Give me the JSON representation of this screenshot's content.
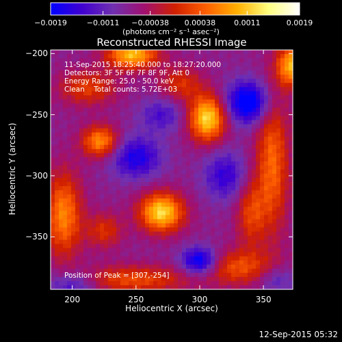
{
  "chart_data": {
    "type": "heatmap",
    "title": "Reconstructed RHESSI Image",
    "xlabel": "Heliocentric X (arcsec)",
    "ylabel": "Heliocentric Y (arcsec)",
    "xlim": [
      183,
      373
    ],
    "ylim": [
      -393,
      -197
    ],
    "x_ticks": [
      200,
      250,
      300,
      350
    ],
    "y_ticks": [
      -200,
      -250,
      -300,
      -350
    ],
    "x_tick_labels": [
      "200",
      "250",
      "300",
      "350"
    ],
    "y_tick_labels": [
      "−200",
      "−250",
      "−300",
      "−350"
    ],
    "colorbar": {
      "range": [
        -0.0019,
        0.0019
      ],
      "tick_values": [
        -0.0019,
        -0.0011,
        -0.00038,
        0.00038,
        0.0011,
        0.0019
      ],
      "tick_labels": [
        "−0.0019",
        "−0.0011",
        "−0.00038",
        "0.00038",
        "0.0011",
        "0.0019"
      ],
      "units": "(photons cm⁻² s⁻¹ asec⁻²)",
      "colormap": [
        "#0000ff",
        "#4000d0",
        "#7030b0",
        "#a01070",
        "#d02000",
        "#ff6000",
        "#ffb000",
        "#ffff80",
        "#ffffff"
      ]
    },
    "annotations": {
      "time_range": "11-Sep-2015 18:25:40.000 to 18:27:20.000",
      "detectors": "Detectors: 3F 5F 6F 7F 8F 9F, Att 0",
      "energy": "Energy Range: 25.0 - 50.0 keV",
      "method": "Clean    Total counts: 5.72E+03",
      "peak": "Position of Peak = [307,-254]"
    },
    "peak_position": [
      307,
      -254
    ],
    "sources": [
      {
        "x": 270,
        "y": -330,
        "amp": 1.0,
        "sx": 12,
        "sy": 11
      },
      {
        "x": 306,
        "y": -253,
        "amp": 1.0,
        "sx": 10,
        "sy": 13
      },
      {
        "x": 247,
        "y": -201,
        "amp": 0.9,
        "sx": 14,
        "sy": 8
      },
      {
        "x": 222,
        "y": -272,
        "amp": 0.75,
        "sx": 10,
        "sy": 9
      },
      {
        "x": 193,
        "y": -332,
        "amp": 0.7,
        "sx": 10,
        "sy": 24
      },
      {
        "x": 357,
        "y": -290,
        "amp": 0.6,
        "sx": 9,
        "sy": 40
      },
      {
        "x": 372,
        "y": -210,
        "amp": 0.85,
        "sx": 8,
        "sy": 12
      },
      {
        "x": 212,
        "y": -228,
        "amp": 0.45,
        "sx": 16,
        "sy": 10
      },
      {
        "x": 248,
        "y": -385,
        "amp": 0.5,
        "sx": 30,
        "sy": 8
      },
      {
        "x": 330,
        "y": -375,
        "amp": 0.5,
        "sx": 20,
        "sy": 10
      },
      {
        "x": 340,
        "y": -330,
        "amp": 0.45,
        "sx": 8,
        "sy": 20
      },
      {
        "x": 285,
        "y": -225,
        "amp": 0.4,
        "sx": 12,
        "sy": 10
      },
      {
        "x": 225,
        "y": -345,
        "amp": 0.4,
        "sx": 10,
        "sy": 10
      },
      {
        "x": 250,
        "y": -285,
        "amp": -0.55,
        "sx": 14,
        "sy": 12
      },
      {
        "x": 338,
        "y": -240,
        "amp": -0.8,
        "sx": 12,
        "sy": 12
      },
      {
        "x": 300,
        "y": -370,
        "amp": -0.75,
        "sx": 10,
        "sy": 8
      },
      {
        "x": 320,
        "y": -300,
        "amp": -0.45,
        "sx": 12,
        "sy": 14
      },
      {
        "x": 200,
        "y": -390,
        "amp": -0.4,
        "sx": 14,
        "sy": 8
      },
      {
        "x": 270,
        "y": -250,
        "amp": -0.35,
        "sx": 12,
        "sy": 10
      },
      {
        "x": 360,
        "y": -385,
        "amp": -0.3,
        "sx": 10,
        "sy": 8
      }
    ],
    "background_level": -0.35
  },
  "footer": {
    "timestamp": "12-Sep-2015 05:32"
  }
}
